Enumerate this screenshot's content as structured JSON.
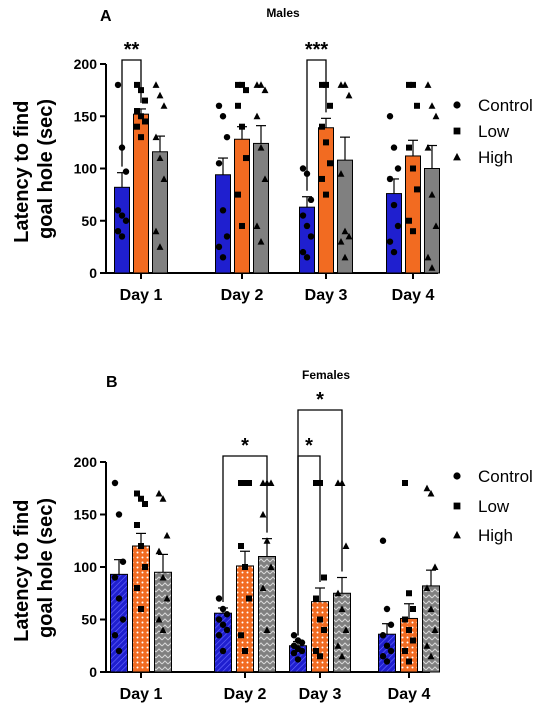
{
  "chart_data": [
    {
      "type": "bar",
      "panel": "A",
      "title": "Males",
      "ylabel": "Latency to find goal hole (sec)",
      "ylabel_lines": [
        "Latency to find",
        "goal hole (sec)"
      ],
      "ylim": [
        0,
        200
      ],
      "yticks": [
        0,
        50,
        100,
        150,
        200
      ],
      "categories": [
        "Day 1",
        "Day 2",
        "Day 3",
        "Day 4"
      ],
      "series": [
        {
          "name": "Control",
          "color": "#1f1fcf",
          "pattern": "solid",
          "values": [
            82,
            94,
            63,
            76
          ],
          "sem": [
            14,
            16,
            10,
            14
          ],
          "points": [
            [
              180,
              120,
              97,
              60,
              55,
              50,
              40,
              35
            ],
            [
              160,
              150,
              130,
              105,
              60,
              35,
              25,
              15
            ],
            [
              100,
              95,
              70,
              55,
              45,
              35,
              20,
              15
            ],
            [
              150,
              120,
              100,
              90,
              65,
              45,
              30,
              20
            ]
          ]
        },
        {
          "name": "Low",
          "color": "#f26b21",
          "pattern": "solid",
          "values": [
            152,
            128,
            139,
            112
          ],
          "sem": [
            5,
            12,
            9,
            15
          ],
          "points": [
            [
              180,
              175,
              165,
              155,
              150,
              145,
              140,
              130
            ],
            [
              180,
              180,
              175,
              160,
              140,
              110,
              75,
              45
            ],
            [
              180,
              180,
              160,
              140,
              125,
              105,
              90,
              75
            ],
            [
              180,
              180,
              160,
              120,
              100,
              80,
              50,
              40
            ]
          ]
        },
        {
          "name": "High",
          "color": "#808080",
          "pattern": "solid",
          "values": [
            116,
            124,
            108,
            100
          ],
          "sem": [
            15,
            17,
            22,
            22
          ],
          "points": [
            [
              180,
              170,
              160,
              130,
              110,
              90,
              40,
              25
            ],
            [
              180,
              180,
              175,
              150,
              120,
              90,
              45,
              30
            ],
            [
              180,
              180,
              170,
              95,
              40,
              35,
              30,
              15
            ],
            [
              180,
              160,
              150,
              120,
              75,
              45,
              15,
              5
            ]
          ]
        }
      ],
      "significance": [
        {
          "category": "Day 1",
          "from": "Control",
          "to": "Low",
          "label": "**"
        },
        {
          "category": "Day 3",
          "from": "Control",
          "to": "Low",
          "label": "***"
        }
      ],
      "legend": {
        "position": "right",
        "entries": [
          "Control",
          "Low",
          "High"
        ],
        "markers": [
          "circle",
          "square",
          "triangle"
        ]
      }
    },
    {
      "type": "bar",
      "panel": "B",
      "title": "Females",
      "ylabel": "Latency to find goal hole (sec)",
      "ylabel_lines": [
        "Latency to find",
        "goal hole (sec)"
      ],
      "ylim": [
        0,
        200
      ],
      "yticks": [
        0,
        50,
        100,
        150,
        200
      ],
      "categories": [
        "Day 1",
        "Day 2",
        "Day 3",
        "Day 4"
      ],
      "series": [
        {
          "name": "Control",
          "color": "#1f1fcf",
          "pattern": "stripes",
          "values": [
            93,
            56,
            25,
            36
          ],
          "sem": [
            14,
            5,
            4,
            10
          ],
          "points": [
            [
              180,
              150,
              105,
              90,
              70,
              50,
              35,
              20
            ],
            [
              70,
              60,
              55,
              50,
              45,
              40,
              35,
              20
            ],
            [
              35,
              30,
              28,
              25,
              22,
              20,
              18,
              12
            ],
            [
              125,
              60,
              45,
              35,
              25,
              20,
              15,
              10
            ]
          ]
        },
        {
          "name": "Low",
          "color": "#f26b21",
          "pattern": "dots",
          "values": [
            120,
            101,
            67,
            51
          ],
          "sem": [
            12,
            14,
            13,
            14
          ],
          "points": [
            [
              170,
              165,
              160,
              140,
              120,
              100,
              80,
              60
            ],
            [
              180,
              180,
              180,
              120,
              100,
              70,
              35,
              20
            ],
            [
              180,
              180,
              90,
              70,
              50,
              40,
              20,
              15
            ],
            [
              180,
              75,
              60,
              50,
              40,
              30,
              20,
              10
            ]
          ]
        },
        {
          "name": "High",
          "color": "#808080",
          "pattern": "zigzag",
          "values": [
            95,
            110,
            75,
            82
          ],
          "sem": [
            17,
            17,
            15,
            15
          ],
          "points": [
            [
              170,
              165,
              130,
              115,
              90,
              70,
              50,
              40
            ],
            [
              180,
              180,
              180,
              150,
              125,
              100,
              80,
              40
            ],
            [
              180,
              180,
              120,
              75,
              60,
              40,
              25,
              15
            ],
            [
              175,
              170,
              100,
              80,
              60,
              40,
              25,
              15
            ]
          ]
        }
      ],
      "significance": [
        {
          "category": "Day 2",
          "from": "Control",
          "to": "High",
          "label": "*"
        },
        {
          "category": "Day 3",
          "from": "Control",
          "to": "Low",
          "label": "*"
        },
        {
          "category": "Day 3",
          "from": "Control",
          "to": "High",
          "label": "*"
        }
      ],
      "legend": {
        "position": "right",
        "entries": [
          "Control",
          "Low",
          "High"
        ],
        "markers": [
          "circle",
          "square",
          "triangle"
        ]
      }
    }
  ]
}
